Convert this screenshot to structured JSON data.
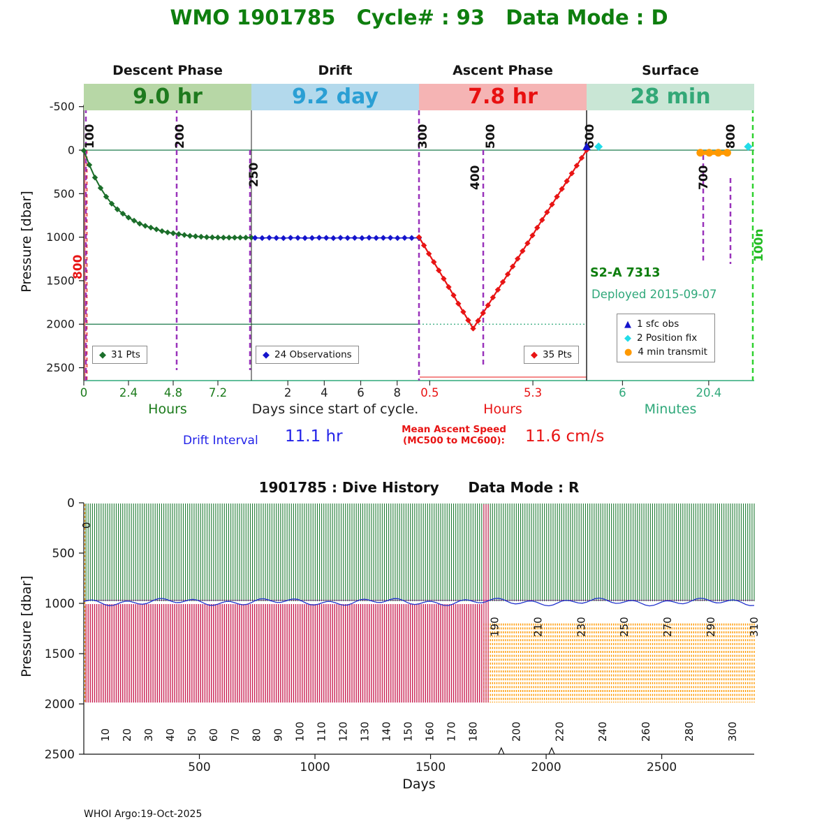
{
  "title": "WMO 1901785   Cycle# : 93   Data Mode : D",
  "phases": [
    {
      "name": "Descent Phase",
      "value": "9.0 hr",
      "band_color": "#b7d7a6",
      "text_color": "#1e7a1e"
    },
    {
      "name": "Drift",
      "value": "9.2 day",
      "band_color": "#b3d9ec",
      "text_color": "#2a9fd4"
    },
    {
      "name": "Ascent Phase",
      "value": "7.8 hr",
      "band_color": "#f5b4b4",
      "text_color": "#e81010"
    },
    {
      "name": "Surface",
      "value": "28 min",
      "band_color": "#c9e6d5",
      "text_color": "#33a877"
    }
  ],
  "top_chart": {
    "ylabel": "Pressure [dbar]",
    "yticks": [
      -500,
      0,
      500,
      1000,
      1500,
      2000,
      2500
    ],
    "sections": [
      {
        "label": "Hours",
        "color": "#1a7a1a",
        "ticks": [
          "0",
          "2.4",
          "4.8",
          "7.2"
        ],
        "tick_vals": [
          0,
          2.4,
          4.8,
          7.2
        ],
        "xmax": 9.0
      },
      {
        "label": "Days since start of cycle.",
        "color": "#222222",
        "ticks": [
          "2",
          "4",
          "6",
          "8"
        ],
        "tick_vals": [
          2,
          4,
          6,
          8
        ],
        "xmax": 9.2
      },
      {
        "label": "Hours",
        "color": "#e81414",
        "ticks": [
          "0.5",
          "5.3"
        ],
        "tick_vals": [
          0.5,
          5.3
        ],
        "xmax": 7.8
      },
      {
        "label": "Minutes",
        "color": "#2fa87a",
        "ticks": [
          "6",
          "20.4"
        ],
        "tick_vals": [
          6,
          20.4
        ],
        "xmax": 28
      }
    ],
    "legend_boxes": [
      {
        "label": "31 Pts"
      },
      {
        "label": "24 Observations"
      },
      {
        "label": "35 Pts"
      }
    ],
    "right_legend": [
      {
        "label": "1 sfc obs",
        "marker": "triangle",
        "color": "#1414cc"
      },
      {
        "label": "2 Position fix",
        "marker": "diamond",
        "color": "#22dce8"
      },
      {
        "label": "4 min transmit",
        "marker": "circle",
        "color": "#ff9900"
      }
    ],
    "float_model": "S2-A 7313",
    "deployed": "Deployed 2015-09-07",
    "drift_interval_label": "Drift Interval",
    "drift_interval_value": "11.1 hr",
    "ascent_speed_label_1": "Mean Ascent Speed",
    "ascent_speed_label_2": "(MC500 to MC600):",
    "ascent_speed_value": "11.6 cm/s"
  },
  "bottom_chart": {
    "title": "1901785 : Dive History      Data Mode : R",
    "ylabel": "Pressure [dbar]",
    "xlabel": "Days",
    "yticks": [
      0,
      500,
      1000,
      1500,
      2000,
      2500
    ],
    "xticks": [
      500,
      1000,
      1500,
      2000,
      2500
    ]
  },
  "footer": "WHOI Argo:19-Oct-2025",
  "chart_data": [
    {
      "type": "line",
      "title": "Cycle 93 phase timing profile",
      "ylabel": "Pressure [dbar]",
      "ylim": [
        2500,
        -500
      ],
      "sections": [
        "Descent Phase 9.0 hr",
        "Drift 9.2 day",
        "Ascent Phase 7.8 hr",
        "Surface 28 min"
      ],
      "mc_markers": [
        "100",
        "200",
        "250",
        "300",
        "400",
        "500",
        "600",
        "700",
        "800",
        "100n"
      ],
      "mc_left_label": "800",
      "reference_lines": {
        "surface_dbar": 0,
        "profile_dbar": 2000
      },
      "series": [
        {
          "name": "Descent (31 Pts)",
          "section": 0,
          "units": "hours",
          "color": "#1b6e2a",
          "marker": "diamond",
          "x": [
            0,
            0.3,
            0.6,
            0.9,
            1.2,
            1.5,
            1.8,
            2.1,
            2.4,
            2.7,
            3.0,
            3.3,
            3.6,
            3.9,
            4.2,
            4.5,
            4.8,
            5.1,
            5.4,
            5.7,
            6.0,
            6.3,
            6.6,
            6.9,
            7.2,
            7.5,
            7.8,
            8.1,
            8.4,
            8.7,
            9.0
          ],
          "y": [
            5,
            170,
            315,
            435,
            535,
            615,
            680,
            730,
            775,
            810,
            845,
            870,
            890,
            910,
            930,
            945,
            955,
            965,
            975,
            985,
            990,
            995,
            1000,
            1002,
            1004,
            1005,
            1005,
            1005,
            1005,
            1005,
            1005
          ]
        },
        {
          "name": "Drift (24 Observations)",
          "section": 1,
          "units": "days",
          "color": "#1414cc",
          "marker": "diamond",
          "x": [
            0.2,
            0.59,
            0.98,
            1.37,
            1.76,
            2.15,
            2.55,
            2.94,
            3.33,
            3.72,
            4.11,
            4.5,
            4.89,
            5.28,
            5.67,
            6.07,
            6.46,
            6.85,
            7.24,
            7.63,
            8.02,
            8.41,
            8.8,
            9.2
          ],
          "y": [
            1008,
            1010,
            1006,
            1009,
            1011,
            1007,
            1008,
            1010,
            1009,
            1006,
            1008,
            1011,
            1007,
            1009,
            1008,
            1010,
            1006,
            1009,
            1008,
            1007,
            1010,
            1008,
            1009,
            1008
          ]
        },
        {
          "name": "Ascent (35 Pts)",
          "section": 2,
          "units": "hours",
          "color": "#e81414",
          "marker": "diamond",
          "x": [
            0,
            0.23,
            0.46,
            0.69,
            0.92,
            1.15,
            1.38,
            1.61,
            1.83,
            2.06,
            2.29,
            2.52,
            2.75,
            2.98,
            3.21,
            3.44,
            3.67,
            3.9,
            4.13,
            4.36,
            4.59,
            4.82,
            5.05,
            5.28,
            5.5,
            5.73,
            5.96,
            6.19,
            6.42,
            6.65,
            6.88,
            7.11,
            7.34,
            7.57,
            7.8
          ],
          "y": [
            1000,
            1095,
            1191,
            1286,
            1382,
            1477,
            1573,
            1668,
            1764,
            1859,
            1955,
            2050,
            1961,
            1872,
            1783,
            1693,
            1604,
            1515,
            1426,
            1337,
            1248,
            1159,
            1070,
            980,
            891,
            802,
            713,
            624,
            535,
            446,
            356,
            267,
            178,
            89,
            0
          ]
        },
        {
          "name": "4 min transmit",
          "section": 3,
          "units": "minutes",
          "color": "#ff9900",
          "marker": "circle",
          "x": [
            19,
            20.5,
            22,
            23.5
          ],
          "y": [
            30,
            30,
            30,
            30
          ]
        },
        {
          "name": "2 Position fix",
          "section": 3,
          "units": "minutes",
          "color": "#22dce8",
          "marker": "diamond",
          "x": [
            2,
            27
          ],
          "y": [
            -40,
            -40
          ]
        },
        {
          "name": "1 sfc obs",
          "section": 3,
          "units": "minutes",
          "color": "#1414cc",
          "marker": "triangle",
          "x": [
            0
          ],
          "y": [
            -40
          ]
        }
      ]
    },
    {
      "type": "dive-history",
      "title": "1901785 : Dive History  Data Mode : R",
      "xlabel": "Days",
      "ylabel": "Pressure [dbar]",
      "xlim": [
        0,
        2900
      ],
      "ylim": [
        2500,
        0
      ],
      "cycles": {
        "count": 310,
        "days_per_cycle": 9.26,
        "park_pressure_dbar": 1000,
        "profile_pressure_dbar": 2000,
        "orange_from_cycle": 185,
        "orange_top_dbar": 1200
      },
      "cycle_zero_label": "0",
      "cycle_axis_labels_bottom": [
        10,
        20,
        30,
        40,
        50,
        60,
        70,
        80,
        90,
        100,
        110,
        120,
        130,
        140,
        150,
        160,
        170,
        180,
        200,
        220,
        240,
        260,
        280,
        300
      ],
      "cycle_axis_labels_mid": [
        190,
        210,
        230,
        250,
        270,
        290,
        310
      ],
      "axis_marks_days": [
        1806,
        2024
      ]
    }
  ]
}
